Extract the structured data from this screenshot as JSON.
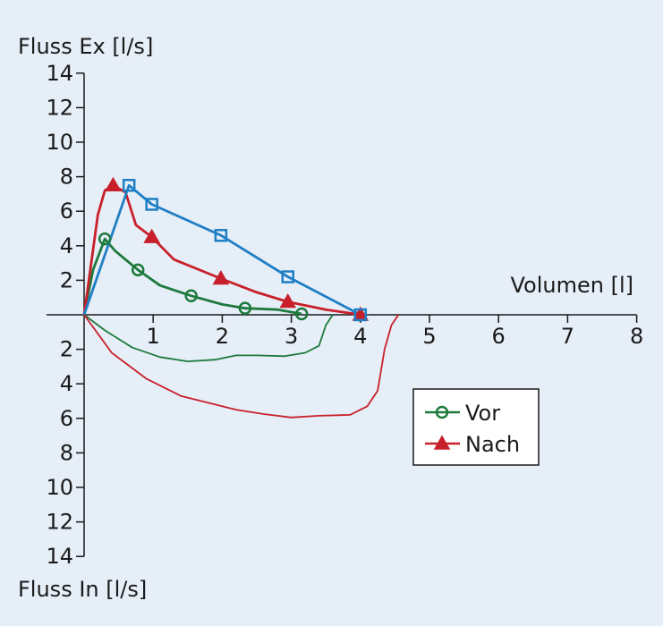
{
  "chart_data": {
    "type": "line",
    "ylabel_top": "Fluss Ex [l/s]",
    "ylabel_bottom": "Fluss In [l/s]",
    "xlabel": "Volumen [l]",
    "xlim": [
      0,
      8
    ],
    "ylim": [
      -14,
      14
    ],
    "x_ticks": [
      1,
      2,
      3,
      4,
      5,
      6,
      7,
      8
    ],
    "y_ticks_top": [
      2,
      4,
      6,
      8,
      10,
      12,
      14
    ],
    "y_ticks_bottom": [
      2,
      4,
      6,
      8,
      10,
      12,
      14
    ],
    "grid": false,
    "legend_position": "bottom-right",
    "colors": {
      "vor": "#1e7a3c",
      "nach": "#c8202a",
      "blue": "#1f7fc4"
    },
    "series": [
      {
        "name": "Vor",
        "marker": "circle",
        "markers": [
          [
            0.3,
            4.4
          ],
          [
            0.78,
            2.6
          ],
          [
            1.55,
            1.1
          ],
          [
            2.33,
            0.38
          ],
          [
            3.15,
            0.05
          ]
        ],
        "expiration": [
          [
            0,
            0
          ],
          [
            0.13,
            2.6
          ],
          [
            0.3,
            4.4
          ],
          [
            0.45,
            3.7
          ],
          [
            0.78,
            2.6
          ],
          [
            1.1,
            1.7
          ],
          [
            1.55,
            1.1
          ],
          [
            2.0,
            0.6
          ],
          [
            2.33,
            0.38
          ],
          [
            2.8,
            0.3
          ],
          [
            3.15,
            0.05
          ]
        ],
        "inspiration": [
          [
            0,
            0
          ],
          [
            0.3,
            -0.9
          ],
          [
            0.7,
            -1.9
          ],
          [
            1.1,
            -2.45
          ],
          [
            1.5,
            -2.7
          ],
          [
            1.9,
            -2.6
          ],
          [
            2.2,
            -2.35
          ],
          [
            2.5,
            -2.35
          ],
          [
            2.9,
            -2.4
          ],
          [
            3.2,
            -2.2
          ],
          [
            3.4,
            -1.8
          ],
          [
            3.5,
            -0.6
          ],
          [
            3.6,
            0
          ]
        ]
      },
      {
        "name": "Nach",
        "marker": "triangle",
        "markers": [
          [
            0.42,
            7.5
          ],
          [
            0.98,
            4.5
          ],
          [
            1.98,
            2.1
          ],
          [
            2.95,
            0.75
          ],
          [
            4.0,
            0
          ]
        ],
        "expiration": [
          [
            0,
            0
          ],
          [
            0.2,
            5.8
          ],
          [
            0.3,
            7.2
          ],
          [
            0.42,
            7.5
          ],
          [
            0.6,
            7.1
          ],
          [
            0.75,
            5.2
          ],
          [
            0.98,
            4.5
          ],
          [
            1.3,
            3.2
          ],
          [
            1.98,
            2.1
          ],
          [
            2.5,
            1.3
          ],
          [
            2.95,
            0.75
          ],
          [
            3.5,
            0.3
          ],
          [
            4.0,
            0
          ]
        ],
        "inspiration": [
          [
            0,
            0
          ],
          [
            0.4,
            -2.2
          ],
          [
            0.9,
            -3.7
          ],
          [
            1.4,
            -4.7
          ],
          [
            1.9,
            -5.2
          ],
          [
            2.2,
            -5.5
          ],
          [
            2.6,
            -5.75
          ],
          [
            3.0,
            -5.95
          ],
          [
            3.4,
            -5.85
          ],
          [
            3.85,
            -5.8
          ],
          [
            4.1,
            -5.3
          ],
          [
            4.25,
            -4.4
          ],
          [
            4.35,
            -2.0
          ],
          [
            4.45,
            -0.6
          ],
          [
            4.55,
            0
          ]
        ]
      },
      {
        "name": "",
        "marker": "square",
        "markers": [
          [
            0.65,
            7.5
          ],
          [
            0.98,
            6.4
          ],
          [
            1.98,
            4.6
          ],
          [
            2.95,
            2.2
          ],
          [
            4.0,
            0
          ]
        ],
        "expiration": [
          [
            0,
            0
          ],
          [
            0.65,
            7.5
          ],
          [
            0.98,
            6.4
          ],
          [
            1.98,
            4.6
          ],
          [
            2.95,
            2.2
          ],
          [
            4.0,
            0
          ]
        ],
        "inspiration": []
      }
    ]
  }
}
